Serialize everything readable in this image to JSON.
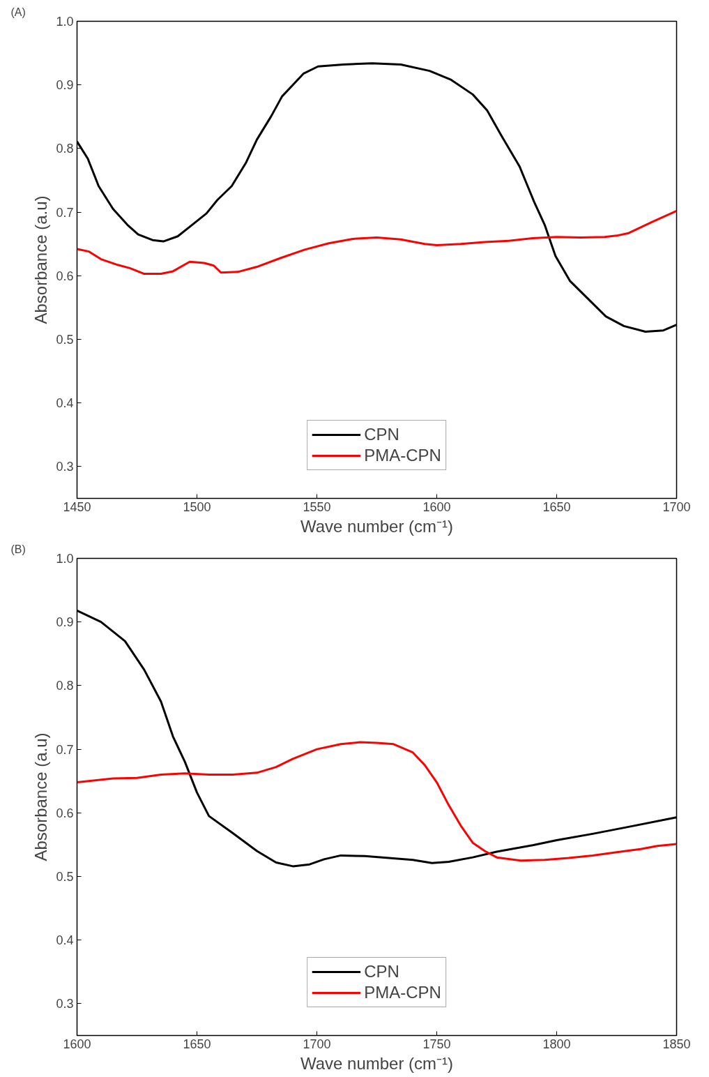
{
  "chart_data": [
    {
      "type": "line",
      "xlabel": "Wave number (cm⁻¹)",
      "ylabel": "Absorbance (a.u)",
      "annotations": [
        "(A)"
      ],
      "xlim": [
        1450,
        1700
      ],
      "ylim": [
        0.25,
        1.0
      ],
      "xticks": [
        1450,
        1500,
        1550,
        1600,
        1650,
        1700
      ],
      "yticks": [
        0.3,
        0.4,
        0.5,
        0.6,
        0.7,
        0.8,
        0.9,
        {
          "value": 1.0,
          "label": "1.0"
        }
      ],
      "grid": false,
      "legend": "bottom",
      "marker": "none",
      "line_style": "solid",
      "series": [
        {
          "name": "CPN",
          "color": "#000000",
          "x": [
            1450,
            1454.5,
            1459,
            1465,
            1471,
            1475.5,
            1481.5,
            1486,
            1492,
            1498,
            1504,
            1508.5,
            1514.5,
            1520.5,
            1525,
            1531,
            1535.5,
            1540,
            1544.5,
            1550.5,
            1561,
            1573,
            1585,
            1597,
            1606,
            1615,
            1621,
            1627,
            1634.5,
            1640.5,
            1645,
            1649.5,
            1655.5,
            1663,
            1670.5,
            1678,
            1687,
            1694.5,
            1700
          ],
          "values": [
            0.811,
            0.784,
            0.741,
            0.705,
            0.68,
            0.665,
            0.656,
            0.654,
            0.662,
            0.68,
            0.698,
            0.719,
            0.741,
            0.778,
            0.814,
            0.851,
            0.882,
            0.9,
            0.918,
            0.929,
            0.932,
            0.934,
            0.932,
            0.922,
            0.908,
            0.885,
            0.86,
            0.82,
            0.772,
            0.717,
            0.68,
            0.631,
            0.592,
            0.564,
            0.536,
            0.521,
            0.512,
            0.514,
            0.523
          ]
        },
        {
          "name": "PMA-CPN",
          "color": "#ff0000",
          "x": [
            1450,
            1455,
            1460,
            1467,
            1472,
            1478,
            1485,
            1490,
            1497,
            1503,
            1507,
            1510,
            1517,
            1525,
            1535,
            1545,
            1555,
            1565,
            1575,
            1585,
            1595,
            1600,
            1610,
            1620,
            1630,
            1640,
            1650,
            1660,
            1670,
            1675,
            1680,
            1690,
            1700
          ],
          "values": [
            0.642,
            0.638,
            0.626,
            0.617,
            0.612,
            0.603,
            0.603,
            0.607,
            0.622,
            0.62,
            0.616,
            0.605,
            0.606,
            0.614,
            0.628,
            0.641,
            0.651,
            0.658,
            0.66,
            0.657,
            0.65,
            0.648,
            0.65,
            0.653,
            0.655,
            0.659,
            0.661,
            0.66,
            0.661,
            0.663,
            0.667,
            0.685,
            0.702
          ]
        }
      ]
    },
    {
      "type": "line",
      "xlabel": "Wave number (cm⁻¹)",
      "ylabel": "Absorbance (a.u)",
      "annotations": [
        "(B)"
      ],
      "xlim": [
        1600,
        1850
      ],
      "ylim": [
        0.25,
        1.0
      ],
      "xticks": [
        1600,
        1650,
        1700,
        1750,
        1800,
        1850
      ],
      "yticks": [
        0.3,
        0.4,
        0.5,
        0.6,
        0.7,
        0.8,
        0.9,
        {
          "value": 1.0,
          "label": "1.0"
        }
      ],
      "grid": false,
      "legend": "bottom",
      "marker": "none",
      "line_style": "solid",
      "series": [
        {
          "name": "CPN",
          "color": "#000000",
          "x": [
            1600,
            1610,
            1620,
            1628,
            1635,
            1640,
            1645,
            1650,
            1655,
            1665,
            1675,
            1683,
            1690,
            1697,
            1703,
            1710,
            1720,
            1730,
            1740,
            1748,
            1755,
            1765,
            1775,
            1790,
            1800,
            1815,
            1830,
            1850
          ],
          "values": [
            0.918,
            0.9,
            0.87,
            0.825,
            0.775,
            0.72,
            0.68,
            0.632,
            0.595,
            0.568,
            0.54,
            0.522,
            0.516,
            0.519,
            0.527,
            0.533,
            0.532,
            0.529,
            0.526,
            0.521,
            0.523,
            0.53,
            0.539,
            0.549,
            0.557,
            0.567,
            0.578,
            0.593
          ]
        },
        {
          "name": "PMA-CPN",
          "color": "#ff0000",
          "x": [
            1600,
            1615,
            1625,
            1635,
            1645,
            1655,
            1665,
            1675,
            1683,
            1690,
            1700,
            1710,
            1718,
            1725,
            1732,
            1740,
            1745,
            1750,
            1755,
            1760,
            1765,
            1770,
            1775,
            1785,
            1795,
            1805,
            1815,
            1825,
            1835,
            1842,
            1850
          ],
          "values": [
            0.648,
            0.654,
            0.655,
            0.66,
            0.662,
            0.66,
            0.66,
            0.663,
            0.672,
            0.685,
            0.7,
            0.708,
            0.711,
            0.71,
            0.708,
            0.695,
            0.675,
            0.648,
            0.612,
            0.58,
            0.553,
            0.54,
            0.53,
            0.525,
            0.526,
            0.529,
            0.533,
            0.538,
            0.543,
            0.548,
            0.551
          ]
        }
      ]
    }
  ]
}
